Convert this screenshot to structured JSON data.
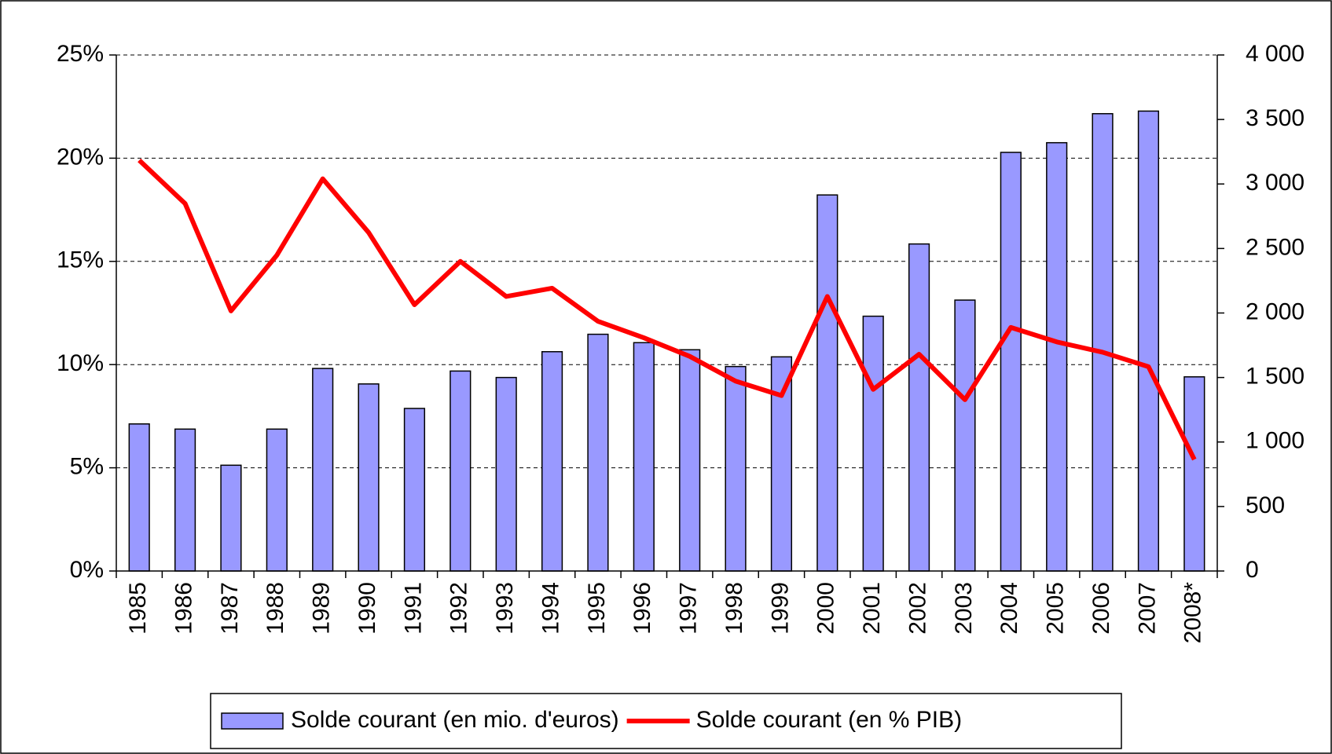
{
  "chart_data": {
    "type": "bar_line",
    "categories": [
      "1985",
      "1986",
      "1987",
      "1988",
      "1989",
      "1990",
      "1991",
      "1992",
      "1993",
      "1994",
      "1995",
      "1996",
      "1997",
      "1998",
      "1999",
      "2000",
      "2001",
      "2002",
      "2003",
      "2004",
      "2005",
      "2006",
      "2007",
      "2008*"
    ],
    "series": [
      {
        "name": "Solde courant (en mio. d'euros)",
        "type": "bar",
        "axis": "y2",
        "color": "#9999ff",
        "values": [
          1140,
          1100,
          820,
          1100,
          1570,
          1450,
          1260,
          1550,
          1500,
          1700,
          1835,
          1770,
          1715,
          1585,
          1660,
          2915,
          1975,
          2535,
          2100,
          3245,
          3320,
          3545,
          3565,
          1505
        ]
      },
      {
        "name": "Solde courant (en % PIB)",
        "type": "line",
        "axis": "y",
        "color": "#ff0000",
        "values": [
          19.9,
          17.8,
          12.6,
          15.3,
          19.0,
          16.4,
          12.9,
          15.0,
          13.3,
          13.7,
          12.1,
          11.3,
          10.4,
          9.2,
          8.5,
          13.3,
          8.8,
          10.5,
          8.3,
          11.8,
          11.1,
          10.6,
          9.9,
          5.4
        ]
      }
    ],
    "ylim": [
      0,
      25
    ],
    "yticks": [
      {
        "value": 0,
        "label": "0%"
      },
      {
        "value": 5,
        "label": "5%"
      },
      {
        "value": 10,
        "label": "10%"
      },
      {
        "value": 15,
        "label": "15%"
      },
      {
        "value": 20,
        "label": "20%"
      },
      {
        "value": 25,
        "label": "25%"
      }
    ],
    "y2lim": [
      0,
      4000
    ],
    "y2ticks": [
      0,
      500,
      {
        "value": 1000,
        "label": "1 000"
      },
      {
        "value": 1500,
        "label": "1 500"
      },
      {
        "value": 2000,
        "label": "2 000"
      },
      {
        "value": 2500,
        "label": "2 500"
      },
      {
        "value": 3000,
        "label": "3 000"
      },
      {
        "value": 3500,
        "label": "3 500"
      },
      {
        "value": 4000,
        "label": "4 000"
      }
    ],
    "grid": true,
    "legend": "bottom"
  }
}
